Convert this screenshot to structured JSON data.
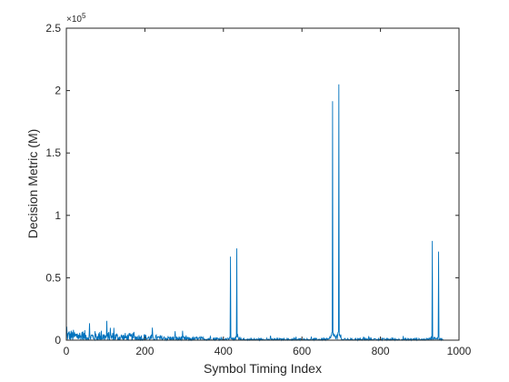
{
  "chart_data": {
    "type": "line",
    "title": "",
    "xlabel": "Symbol Timing Index",
    "ylabel": "Decision Metric (M)",
    "xlim": [
      0,
      1000
    ],
    "ylim": [
      0,
      250000
    ],
    "y_exponent_label": "×10",
    "y_exponent_power": "5",
    "xticks": [
      0,
      200,
      400,
      600,
      800,
      1000
    ],
    "xtick_labels": [
      "0",
      "200",
      "400",
      "600",
      "800",
      "1000"
    ],
    "yticks": [
      0,
      50000,
      100000,
      150000,
      200000,
      250000
    ],
    "ytick_labels": [
      "0",
      "0.5",
      "1",
      "1.5",
      "2",
      "2.5"
    ],
    "grid": false,
    "series_color": "#0072BD",
    "x_range": [
      0,
      960
    ],
    "peaks": [
      {
        "x": 418,
        "y": 67000
      },
      {
        "x": 434,
        "y": 73500
      },
      {
        "x": 678,
        "y": 191500
      },
      {
        "x": 694,
        "y": 205000
      },
      {
        "x": 932,
        "y": 79500
      },
      {
        "x": 948,
        "y": 71000
      }
    ],
    "baseline_level": 3000
  }
}
